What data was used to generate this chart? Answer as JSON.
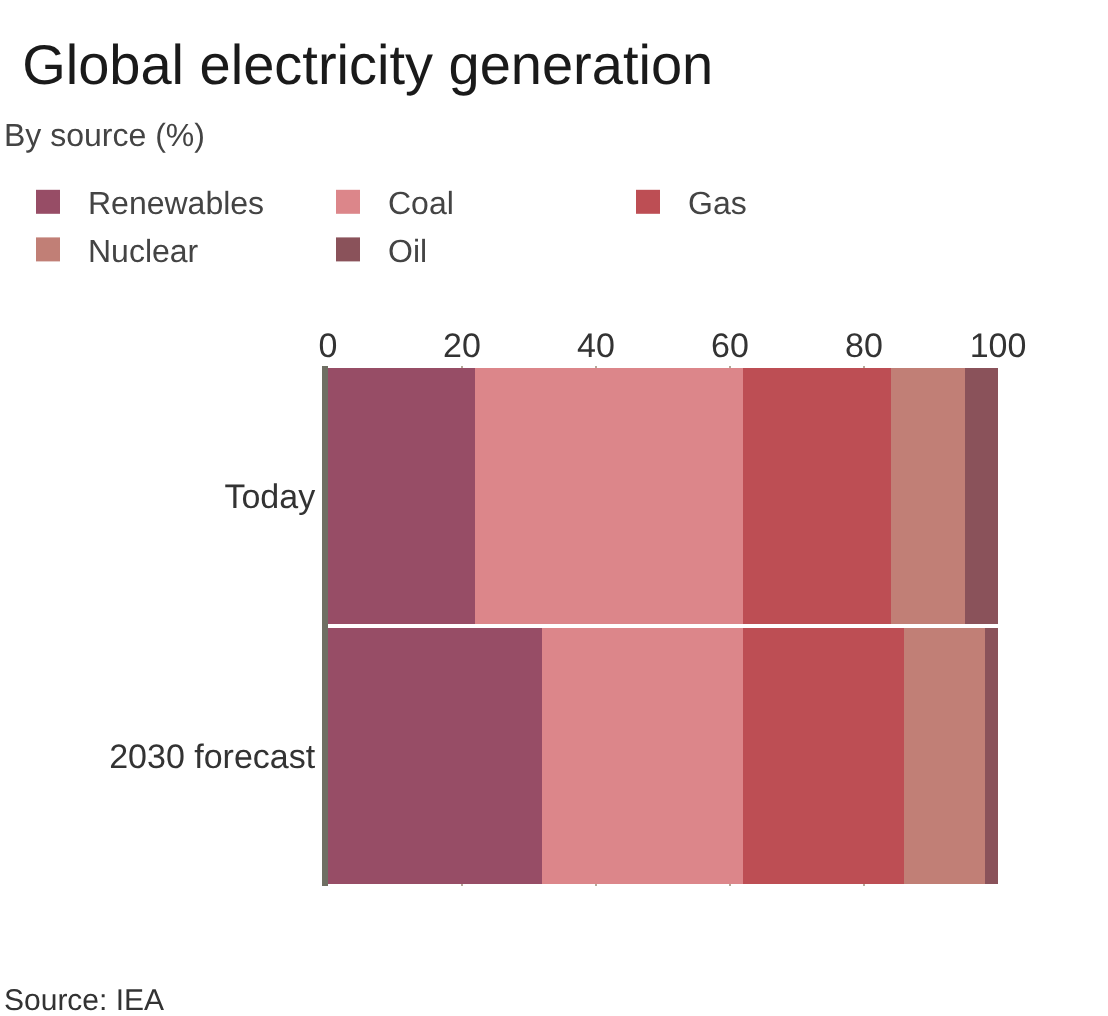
{
  "chart_data": {
    "type": "bar",
    "orientation": "horizontal",
    "stacked": true,
    "title": "Global electricity generation",
    "subtitle": "By source (%)",
    "categories": [
      "Today",
      "2030 forecast"
    ],
    "series": [
      {
        "name": "Renewables",
        "color": "#974d66",
        "values": [
          22,
          32
        ]
      },
      {
        "name": "Coal",
        "color": "#dc868a",
        "values": [
          40,
          30
        ]
      },
      {
        "name": "Gas",
        "color": "#bd4e54",
        "values": [
          22,
          24
        ]
      },
      {
        "name": "Nuclear",
        "color": "#c17f76",
        "values": [
          11,
          12
        ]
      },
      {
        "name": "Oil",
        "color": "#8a525a",
        "values": [
          5,
          2
        ]
      }
    ],
    "xlim": [
      0,
      100
    ],
    "xticks": [
      0,
      20,
      40,
      60,
      80,
      100
    ],
    "grid": "x",
    "legend": "top left",
    "annotations": [
      "Source: IEA"
    ]
  }
}
